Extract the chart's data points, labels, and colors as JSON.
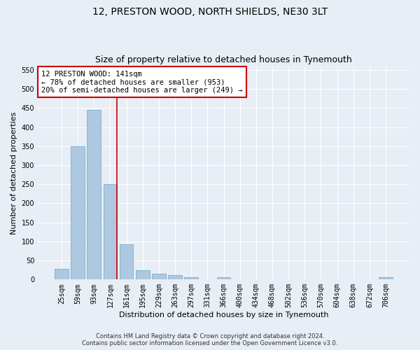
{
  "title": "12, PRESTON WOOD, NORTH SHIELDS, NE30 3LT",
  "subtitle": "Size of property relative to detached houses in Tynemouth",
  "xlabel": "Distribution of detached houses by size in Tynemouth",
  "ylabel": "Number of detached properties",
  "categories": [
    "25sqm",
    "59sqm",
    "93sqm",
    "127sqm",
    "161sqm",
    "195sqm",
    "229sqm",
    "263sqm",
    "297sqm",
    "331sqm",
    "366sqm",
    "400sqm",
    "434sqm",
    "468sqm",
    "502sqm",
    "536sqm",
    "570sqm",
    "604sqm",
    "638sqm",
    "672sqm",
    "706sqm"
  ],
  "values": [
    28,
    350,
    445,
    250,
    93,
    25,
    15,
    12,
    7,
    0,
    6,
    0,
    0,
    0,
    0,
    0,
    0,
    0,
    0,
    0,
    6
  ],
  "bar_color": "#adc8e0",
  "bar_edge_color": "#7aaecb",
  "vline_color": "#cc0000",
  "annotation_text": "12 PRESTON WOOD: 141sqm\n← 78% of detached houses are smaller (953)\n20% of semi-detached houses are larger (249) →",
  "annotation_box_color": "#ffffff",
  "annotation_box_edge_color": "#cc0000",
  "ylim": [
    0,
    560
  ],
  "yticks": [
    0,
    50,
    100,
    150,
    200,
    250,
    300,
    350,
    400,
    450,
    500,
    550
  ],
  "background_color": "#e8eef5",
  "grid_color": "#ffffff",
  "footer_line1": "Contains HM Land Registry data © Crown copyright and database right 2024.",
  "footer_line2": "Contains public sector information licensed under the Open Government Licence v3.0.",
  "title_fontsize": 10,
  "subtitle_fontsize": 9,
  "xlabel_fontsize": 8,
  "ylabel_fontsize": 8,
  "annotation_fontsize": 7.5,
  "tick_fontsize": 7
}
